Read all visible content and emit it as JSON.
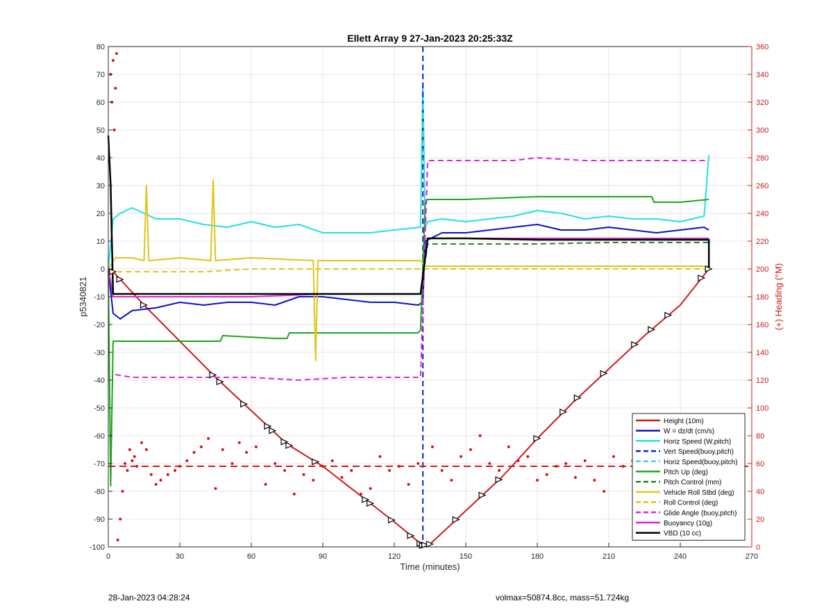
{
  "chart_data": {
    "type": "line",
    "title": "Ellett Array 9 27-Jan-2023 20:25:33Z",
    "xlabel": "Time (minutes)",
    "ylabel": "p5340821",
    "y2label": "(+) Heading (°M)",
    "xlim": [
      0,
      270
    ],
    "ylim": [
      -100,
      80
    ],
    "y2lim": [
      0,
      360
    ],
    "xticks": [
      "0",
      "30",
      "60",
      "90",
      "120",
      "150",
      "180",
      "210",
      "240",
      "270"
    ],
    "yticks": [
      "-100",
      "-90",
      "-80",
      "-70",
      "-60",
      "-50",
      "-40",
      "-30",
      "-20",
      "-10",
      "0",
      "10",
      "20",
      "30",
      "40",
      "50",
      "60",
      "70",
      "80"
    ],
    "y2ticks": [
      "0",
      "20",
      "40",
      "60",
      "80",
      "100",
      "120",
      "140",
      "160",
      "180",
      "200",
      "220",
      "240",
      "260",
      "280",
      "300",
      "320",
      "340",
      "360"
    ],
    "grid": true,
    "legend_position": "bottom-right",
    "series": [
      {
        "name": "Height (10m)",
        "color": "#cc1a1a",
        "style": "solid",
        "x": [
          0,
          2,
          15,
          45,
          60,
          75,
          90,
          105,
          120,
          132,
          135,
          150,
          165,
          180,
          195,
          210,
          225,
          240,
          252
        ],
        "y": [
          0,
          -1,
          -13,
          -39,
          -51,
          -63,
          -71,
          -81,
          -91,
          -99.5,
          -99,
          -87,
          -75,
          -61,
          -48,
          -36,
          -24,
          -13,
          0
        ]
      },
      {
        "name": "W = dz/dt (cm/s)",
        "color": "#0a10c8",
        "style": "solid",
        "x": [
          0,
          2,
          5,
          10,
          20,
          30,
          40,
          50,
          60,
          70,
          80,
          90,
          100,
          110,
          120,
          130,
          132,
          133,
          140,
          150,
          160,
          170,
          180,
          190,
          200,
          210,
          220,
          230,
          240,
          250,
          252
        ],
        "y": [
          0,
          -16,
          -18,
          -15,
          -14,
          -12,
          -13,
          -12,
          -12,
          -13,
          -10,
          -10,
          -11,
          -12,
          -12,
          -13,
          -12,
          10,
          13,
          13,
          14,
          15,
          16,
          14,
          14,
          15,
          14,
          13,
          14,
          15,
          14
        ]
      },
      {
        "name": "Horiz Speed (W,pitch)",
        "color": "#20e0e6",
        "style": "solid",
        "x": [
          0,
          2,
          5,
          10,
          20,
          30,
          40,
          50,
          60,
          70,
          80,
          90,
          100,
          110,
          120,
          131,
          132,
          133,
          134,
          140,
          150,
          160,
          170,
          180,
          190,
          200,
          210,
          220,
          230,
          240,
          250,
          252
        ],
        "y": [
          0,
          18,
          20,
          22,
          18,
          18,
          16,
          15,
          17,
          15,
          16,
          13,
          13,
          13,
          14,
          15,
          67,
          15,
          17,
          18,
          17,
          18,
          19,
          21,
          20,
          18,
          19,
          18,
          18,
          17,
          19,
          41
        ]
      },
      {
        "name": "Vert Speed(buoy,pitch)",
        "color": "#1020c0",
        "style": "dashed",
        "x": [
          132,
          132
        ],
        "y": [
          80,
          -100
        ]
      },
      {
        "name": "Horiz Speed(buoy,pitch)",
        "color": "#40d8e0",
        "style": "dashed",
        "x": [
          131,
          132,
          133
        ],
        "y": [
          15,
          60,
          15
        ]
      },
      {
        "name": "Pitch Up (deg)",
        "color": "#18a818",
        "style": "solid",
        "x": [
          0,
          1,
          2,
          5,
          20,
          40,
          47,
          48,
          70,
          75,
          76,
          100,
          130,
          131,
          133,
          134,
          150,
          180,
          200,
          210,
          228,
          229,
          240,
          252
        ],
        "y": [
          0,
          -78,
          -26,
          -26,
          -26,
          -26,
          -26,
          -24,
          -25,
          -25,
          -23,
          -23,
          -23,
          -22,
          24,
          25,
          25,
          26,
          26,
          26,
          26,
          24,
          24,
          25
        ]
      },
      {
        "name": "Pitch Control (mm)",
        "color": "#1f8a1f",
        "style": "dashed",
        "x": [
          0,
          2,
          60,
          100,
          131,
          134,
          150,
          180,
          210,
          240,
          252
        ],
        "y": [
          0,
          -9,
          -9,
          -9,
          -9,
          9,
          9,
          9,
          9.5,
          9.5,
          9.5
        ]
      },
      {
        "name": "Vehicle Roll Stbd (deg)",
        "color": "#e0c418",
        "style": "solid",
        "x": [
          0,
          3,
          5,
          10,
          15,
          16,
          17,
          30,
          43,
          44,
          45,
          60,
          86,
          87,
          88,
          100,
          128,
          130,
          131,
          133,
          134,
          140,
          160,
          180,
          200,
          220,
          240,
          252
        ],
        "y": [
          0,
          4,
          4,
          4,
          3,
          30,
          3,
          4,
          3,
          32,
          3,
          4,
          3,
          -33,
          3,
          3,
          3,
          3,
          3,
          1,
          1,
          1,
          1,
          1,
          1,
          1,
          1,
          1
        ]
      },
      {
        "name": "Roll Control (deg)",
        "color": "#e0c418",
        "style": "dashed",
        "x": [
          0,
          3,
          20,
          40,
          60,
          80,
          100,
          120,
          131,
          134,
          160,
          180,
          200,
          230,
          252
        ],
        "y": [
          0,
          -1,
          -1,
          -1,
          0,
          0,
          0,
          0,
          0,
          0,
          0,
          0,
          0,
          0,
          0
        ]
      },
      {
        "name": "Glide Angle (buoy,pitch)",
        "color": "#e020e0",
        "style": "dashed",
        "x": [
          3,
          10,
          20,
          40,
          60,
          80,
          100,
          120,
          131,
          134,
          150,
          170,
          180,
          200,
          220,
          240,
          252
        ],
        "y": [
          -38,
          -39,
          -39,
          -39,
          -39,
          -40,
          -39,
          -39,
          -39,
          39,
          39,
          39,
          40,
          39,
          39,
          39,
          39
        ]
      },
      {
        "name": "Buoyancy (10g)",
        "color": "#e020d8",
        "style": "solid",
        "x": [
          0,
          2,
          30,
          60,
          90,
          120,
          131,
          134,
          150,
          180,
          210,
          240,
          252
        ],
        "y": [
          0,
          -10,
          -10,
          -10,
          -9,
          -9,
          -9,
          11,
          11,
          11,
          11,
          11,
          11
        ]
      },
      {
        "name": "VBD (10 cc)",
        "color": "#000000",
        "style": "solid",
        "x": [
          0,
          1,
          2,
          30,
          60,
          90,
          120,
          131,
          134,
          150,
          180,
          210,
          240,
          252,
          252
        ],
        "y": [
          48,
          30,
          -9,
          -9,
          -9,
          -9,
          -9,
          -9,
          11,
          11,
          10.5,
          10.5,
          10.5,
          10.5,
          0
        ]
      }
    ],
    "heading_scatter": {
      "axis": "y2",
      "color": "#dd1111",
      "mean": 58,
      "x": [
        1,
        1.5,
        2,
        2.5,
        3,
        3.5,
        4,
        5,
        6,
        7,
        8,
        9,
        10,
        11,
        12,
        14,
        16,
        18,
        20,
        22,
        25,
        28,
        30,
        33,
        36,
        39,
        42,
        45,
        48,
        52,
        55,
        58,
        62,
        66,
        70,
        74,
        78,
        82,
        86,
        90,
        94,
        98,
        102,
        106,
        110,
        114,
        118,
        122,
        126,
        130,
        136,
        140,
        144,
        148,
        152,
        156,
        160,
        164,
        168,
        172,
        176,
        180,
        184,
        188,
        192,
        196,
        200,
        204,
        208,
        212,
        216,
        220,
        224,
        228,
        232,
        236,
        240,
        244,
        248,
        252
      ],
      "y": [
        340,
        320,
        350,
        300,
        330,
        355,
        5,
        20,
        40,
        60,
        55,
        70,
        62,
        65,
        58,
        75,
        70,
        52,
        45,
        48,
        52,
        55,
        58,
        62,
        68,
        72,
        78,
        42,
        70,
        60,
        75,
        68,
        72,
        45,
        60,
        55,
        38,
        52,
        48,
        58,
        62,
        50,
        55,
        38,
        42,
        65,
        55,
        58,
        45,
        60,
        72,
        55,
        48,
        65,
        70,
        80,
        60,
        55,
        72,
        62,
        65,
        48,
        52,
        58,
        60,
        50,
        62,
        48,
        40,
        65,
        58,
        62,
        55,
        68,
        50,
        62,
        58,
        48,
        60,
        58
      ]
    },
    "markers_note": "triangle markers along Height (10m)",
    "marker_x": [
      2,
      5,
      15,
      44,
      47,
      57,
      67,
      69,
      74,
      76,
      87,
      108,
      110,
      119,
      127,
      131,
      132,
      133,
      135,
      146,
      157,
      164,
      180,
      191,
      197,
      208,
      221,
      228,
      235,
      249,
      252
    ],
    "legend": [
      "Height (10m)",
      "W = dz/dt (cm/s)",
      "Horiz Speed (W,pitch)",
      "Vert Speed(buoy,pitch)",
      "Horiz Speed(buoy,pitch)",
      "Pitch Up (deg)",
      "Pitch Control (mm)",
      "Vehicle Roll Stbd (deg)",
      "Roll Control (deg)",
      "Glide Angle (buoy,pitch)",
      "Buoyancy (10g)",
      "VBD (10 cc)"
    ]
  },
  "footer": {
    "left": "28-Jan-2023 04:28:24",
    "right": "volmax=50874.8cc, mass=51.724kg"
  }
}
